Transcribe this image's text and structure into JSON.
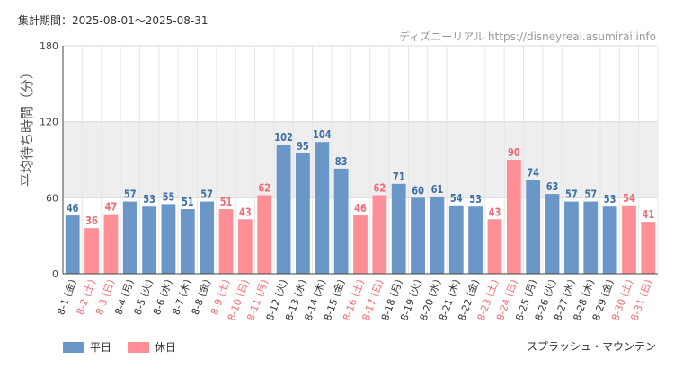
{
  "header": {
    "period": "集計期間：2025-08-01～2025-08-31",
    "credit": "ディズニーリアル https://disneyreal.asumirai.info"
  },
  "footer": {
    "attraction": "スプラッシュ・マウンテン"
  },
  "colors": {
    "weekday": "#6a96c8",
    "holiday": "#ff8f96",
    "weekday_text": "#3d6fa8",
    "holiday_text": "#f26b74",
    "band": "#eeeeee"
  },
  "chart_data": {
    "type": "bar",
    "ylabel": "平均待ち時間（分）",
    "ylim": [
      0,
      180
    ],
    "yticks": [
      0,
      60,
      120,
      180
    ],
    "grid": true,
    "legend_position": "bottom-left",
    "legend": [
      {
        "key": "weekday",
        "label": "平日"
      },
      {
        "key": "holiday",
        "label": "休日"
      }
    ],
    "categories": [
      "8-1 (金)",
      "8-2 (土)",
      "8-3 (日)",
      "8-4 (月)",
      "8-5 (火)",
      "8-6 (水)",
      "8-7 (木)",
      "8-8 (金)",
      "8-9 (土)",
      "8-10 (日)",
      "8-11 (月)",
      "8-12 (火)",
      "8-13 (水)",
      "8-14 (木)",
      "8-15 (金)",
      "8-16 (土)",
      "8-17 (日)",
      "8-18 (月)",
      "8-19 (火)",
      "8-20 (水)",
      "8-21 (木)",
      "8-22 (金)",
      "8-23 (土)",
      "8-24 (日)",
      "8-25 (月)",
      "8-26 (火)",
      "8-27 (水)",
      "8-28 (木)",
      "8-29 (金)",
      "8-30 (土)",
      "8-31 (日)"
    ],
    "values": [
      46,
      36,
      47,
      57,
      53,
      55,
      51,
      57,
      51,
      43,
      62,
      102,
      95,
      104,
      83,
      46,
      62,
      71,
      60,
      61,
      54,
      53,
      43,
      90,
      74,
      63,
      57,
      57,
      53,
      54,
      41
    ],
    "day_type": [
      "weekday",
      "holiday",
      "holiday",
      "weekday",
      "weekday",
      "weekday",
      "weekday",
      "weekday",
      "holiday",
      "holiday",
      "holiday",
      "weekday",
      "weekday",
      "weekday",
      "weekday",
      "holiday",
      "holiday",
      "weekday",
      "weekday",
      "weekday",
      "weekday",
      "weekday",
      "holiday",
      "holiday",
      "weekday",
      "weekday",
      "weekday",
      "weekday",
      "weekday",
      "holiday",
      "holiday"
    ]
  }
}
